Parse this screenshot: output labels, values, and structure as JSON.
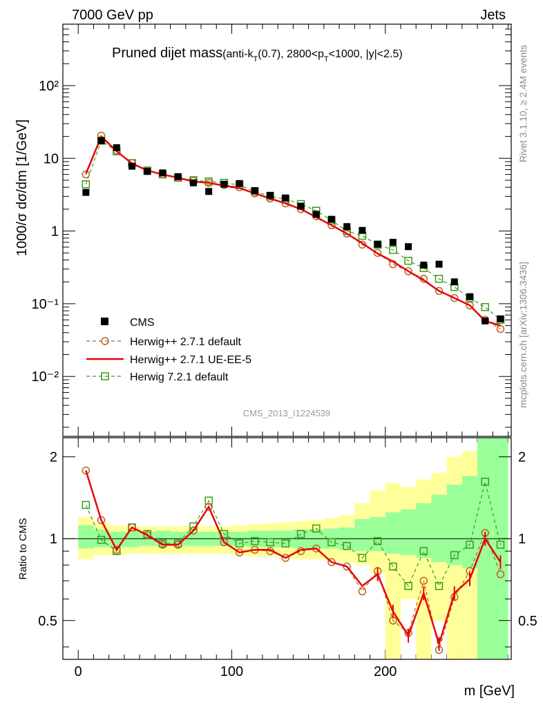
{
  "header": {
    "energy": "7000 GeV pp",
    "process": "Jets"
  },
  "side": {
    "rivet": "Rivet 3.1.10, ≥ 2.4M events",
    "source": "mcplots.cern.ch [arXiv:1306.3436]"
  },
  "chart_data": {
    "type": "line",
    "title_main": "Pruned dijet mass",
    "title_sub": "(anti-k",
    "title_sub_sub": "T",
    "title_sub_rest": "(0.7), 2800<p",
    "title_sub_sub2": "T",
    "title_sub_end": "<1000, |y|<2.5)",
    "analysis": "CMS_2013_I1224539",
    "xlabel": "m [GeV]",
    "ylabel": "1000/σ dσ/dm [1/GeV]",
    "ratio_ylabel": "Ratio to CMS",
    "xlim": [
      -10,
      282
    ],
    "ylim": [
      0.0015,
      700
    ],
    "yscale": "log",
    "ratio_ylim": [
      0.36,
      2.35
    ],
    "legend_position": "lower-left",
    "x_ticks": [
      "0",
      "100",
      "200"
    ],
    "y_ticks": [
      "10⁻²",
      "10⁻¹",
      "1",
      "10",
      "10²"
    ],
    "ratio_ticks": [
      "0.5",
      "1",
      "2"
    ],
    "x": [
      5,
      15,
      25,
      35,
      45,
      55,
      65,
      75,
      85,
      95,
      105,
      115,
      125,
      135,
      145,
      155,
      165,
      175,
      185,
      195,
      205,
      215,
      225,
      235,
      245,
      255,
      265,
      275
    ],
    "series": [
      {
        "name": "CMS",
        "color": "#000000",
        "values": [
          3.4,
          17.5,
          14.0,
          7.8,
          6.6,
          6.3,
          5.6,
          4.6,
          3.5,
          4.4,
          4.5,
          3.6,
          3.1,
          2.85,
          2.2,
          1.7,
          1.45,
          1.15,
          1.02,
          0.66,
          0.7,
          0.61,
          0.34,
          0.35,
          0.2,
          0.125,
          0.058,
          0.062
        ]
      },
      {
        "name": "Herwig++ 2.7.1 default",
        "color": "#b5651d",
        "values": [
          6.0,
          20.5,
          12.8,
          8.6,
          6.7,
          6.0,
          5.4,
          4.9,
          4.6,
          4.3,
          4.0,
          3.3,
          2.8,
          2.4,
          2.0,
          1.6,
          1.2,
          0.92,
          0.65,
          0.5,
          0.35,
          0.28,
          0.22,
          0.15,
          0.12,
          0.095,
          0.06,
          0.045
        ]
      },
      {
        "name": "Herwig++ 2.7.1 UE-EE-5",
        "color": "#e8000b",
        "values": [
          6.1,
          20.0,
          12.5,
          8.5,
          6.8,
          6.0,
          5.4,
          4.8,
          4.6,
          4.2,
          3.9,
          3.3,
          2.8,
          2.4,
          2.0,
          1.55,
          1.2,
          0.92,
          0.68,
          0.49,
          0.38,
          0.28,
          0.21,
          0.15,
          0.12,
          0.095,
          0.058,
          0.05
        ]
      },
      {
        "name": "Herwig 7.2.1 default",
        "color": "#3a9a1a",
        "values": [
          4.4,
          17.5,
          12.5,
          8.6,
          6.8,
          6.0,
          5.4,
          5.0,
          4.8,
          4.6,
          4.3,
          3.5,
          3.0,
          2.75,
          2.35,
          1.9,
          1.4,
          1.0,
          0.86,
          0.65,
          0.55,
          0.39,
          0.31,
          0.22,
          0.17,
          0.12,
          0.09,
          0.06
        ]
      }
    ],
    "ratios": [
      {
        "name": "Herwig++ 2.7.1 default",
        "values": [
          1.78,
          1.17,
          0.91,
          1.1,
          1.03,
          0.95,
          0.95,
          1.07,
          1.31,
          0.97,
          0.89,
          0.91,
          0.9,
          0.85,
          0.9,
          0.92,
          0.82,
          0.79,
          0.64,
          0.76,
          0.5,
          0.45,
          0.7,
          0.39,
          0.61,
          0.76,
          1.05,
          0.74
        ]
      },
      {
        "name": "Herwig++ 2.7.1 UE-EE-5",
        "values": [
          1.78,
          1.17,
          0.91,
          1.1,
          1.03,
          0.95,
          0.95,
          1.07,
          1.31,
          0.97,
          0.89,
          0.91,
          0.91,
          0.85,
          0.91,
          0.92,
          0.82,
          0.79,
          0.67,
          0.74,
          0.54,
          0.44,
          0.63,
          0.41,
          0.63,
          0.71,
          1.0,
          0.82
        ]
      },
      {
        "name": "Herwig 7.2.1 default",
        "values": [
          1.33,
          0.99,
          0.9,
          1.1,
          1.04,
          0.96,
          0.96,
          1.11,
          1.38,
          1.04,
          0.96,
          0.98,
          0.97,
          0.96,
          1.04,
          1.09,
          0.97,
          0.94,
          0.85,
          0.98,
          0.79,
          0.67,
          0.9,
          0.67,
          0.87,
          0.95,
          1.62,
          0.95
        ]
      }
    ],
    "ratio_bands": {
      "inner": [
        [
          0.92,
          1.12
        ],
        [
          0.93,
          1.08
        ],
        [
          0.93,
          1.06
        ],
        [
          0.93,
          1.06
        ],
        [
          0.94,
          1.06
        ],
        [
          0.94,
          1.07
        ],
        [
          0.94,
          1.06
        ],
        [
          0.94,
          1.06
        ],
        [
          0.94,
          1.06
        ],
        [
          0.94,
          1.06
        ],
        [
          0.94,
          1.06
        ],
        [
          0.93,
          1.07
        ],
        [
          0.93,
          1.07
        ],
        [
          0.93,
          1.07
        ],
        [
          0.92,
          1.08
        ],
        [
          0.92,
          1.08
        ],
        [
          0.92,
          1.09
        ],
        [
          0.91,
          1.1
        ],
        [
          0.9,
          1.18
        ],
        [
          0.9,
          1.2
        ],
        [
          0.88,
          1.25
        ],
        [
          0.87,
          1.28
        ],
        [
          0.85,
          1.35
        ],
        [
          0.82,
          1.45
        ],
        [
          0.8,
          1.58
        ],
        [
          0.78,
          1.7
        ],
        [
          0.3,
          2.4
        ],
        [
          0.3,
          2.4
        ]
      ],
      "outer": [
        [
          0.84,
          1.2
        ],
        [
          0.87,
          1.14
        ],
        [
          0.87,
          1.12
        ],
        [
          0.88,
          1.11
        ],
        [
          0.88,
          1.11
        ],
        [
          0.88,
          1.11
        ],
        [
          0.88,
          1.11
        ],
        [
          0.88,
          1.11
        ],
        [
          0.88,
          1.11
        ],
        [
          0.88,
          1.11
        ],
        [
          0.87,
          1.12
        ],
        [
          0.86,
          1.13
        ],
        [
          0.86,
          1.14
        ],
        [
          0.85,
          1.15
        ],
        [
          0.84,
          1.16
        ],
        [
          0.84,
          1.17
        ],
        [
          0.83,
          1.19
        ],
        [
          0.82,
          1.22
        ],
        [
          0.8,
          1.35
        ],
        [
          0.75,
          1.5
        ],
        [
          0.3,
          1.6
        ],
        [
          0.6,
          1.55
        ],
        [
          0.3,
          1.65
        ],
        [
          0.5,
          1.75
        ],
        [
          0.3,
          2.0
        ],
        [
          0.3,
          2.1
        ],
        [
          0.3,
          2.4
        ],
        [
          0.3,
          2.4
        ]
      ]
    }
  }
}
